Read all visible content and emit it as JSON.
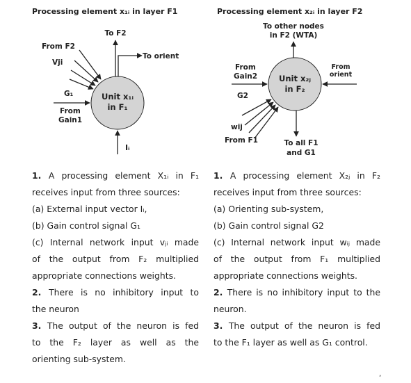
{
  "left": {
    "title": "Processing element  x₁ᵢ  in layer  F1",
    "diagram": {
      "unit_label_1": "Unit x₁ᵢ",
      "unit_label_2": "in F₁",
      "to_f2": "To F2",
      "to_orient": "To orient",
      "from_f2": "From F2",
      "vji": "Vji",
      "g1": "G₁",
      "from_gain1_1": "From",
      "from_gain1_2": "Gain1",
      "ii": "Iᵢ"
    },
    "text": [
      {
        "num": "1.",
        "body": "A processing element  X₁ᵢ  in  F₁",
        "justify": true
      },
      {
        "body": "receives input from three sources:"
      },
      {
        "body": "(a) External  input  vector  Iᵢ,"
      },
      {
        "body": "(b) Gain  control  signal  G₁"
      },
      {
        "body": "(c) Internal network input vⱼᵢ made",
        "justify": true
      },
      {
        "body": "of  the  output  from  F₂  multiplied",
        "justify": true
      },
      {
        "body": "appropriate connections weights."
      },
      {
        "num": "2.",
        "body": "There is no inhibitory input to",
        "justify": true
      },
      {
        "body": "the neuron"
      },
      {
        "num": "3.",
        "body": "The output of the neuron is fed",
        "justify": true
      },
      {
        "body": "to  the  F₂  layer  as  well  as  the",
        "justify": true
      },
      {
        "body": "orienting sub-system."
      }
    ]
  },
  "right": {
    "title": "Processing element  x₂ᵢ  in layer  F2",
    "diagram": {
      "unit_label_1": "Unit x₂ⱼ",
      "unit_label_2": "in F₂",
      "to_other_1": "To other nodes",
      "to_other_2": "in F2 (WTA)",
      "from_gain2_1": "From",
      "from_gain2_2": "Gain2",
      "from_orient_1": "From",
      "from_orient_2": "orient",
      "g2": "G2",
      "wij": "wij",
      "from_f1": "From F1",
      "to_all_1": "To all F1",
      "to_all_2": "and  G1"
    },
    "text": [
      {
        "num": "1.",
        "body": "A processing element  X₂ⱼ  in  F₂",
        "justify": true
      },
      {
        "body": "receives input from three sources:"
      },
      {
        "body": "(a) Orienting sub-system,"
      },
      {
        "body": "(b) Gain control signal G2"
      },
      {
        "body": "(c) Internal network input wᵢⱼ made",
        "justify": true
      },
      {
        "body": "of  the  output  from  F₁  multiplied",
        "justify": true
      },
      {
        "body": "appropriate connections weights."
      },
      {
        "num": "2.",
        "body": "There is no inhibitory input to the",
        "justify": true
      },
      {
        "body": "neuron."
      },
      {
        "num": "3.",
        "body": "The output of the neuron is fed",
        "justify": true
      },
      {
        "body": "to the F₁ layer as well as G₁ control."
      }
    ]
  },
  "colors": {
    "node_fill": "#d4d4d4",
    "ink": "#222222"
  }
}
